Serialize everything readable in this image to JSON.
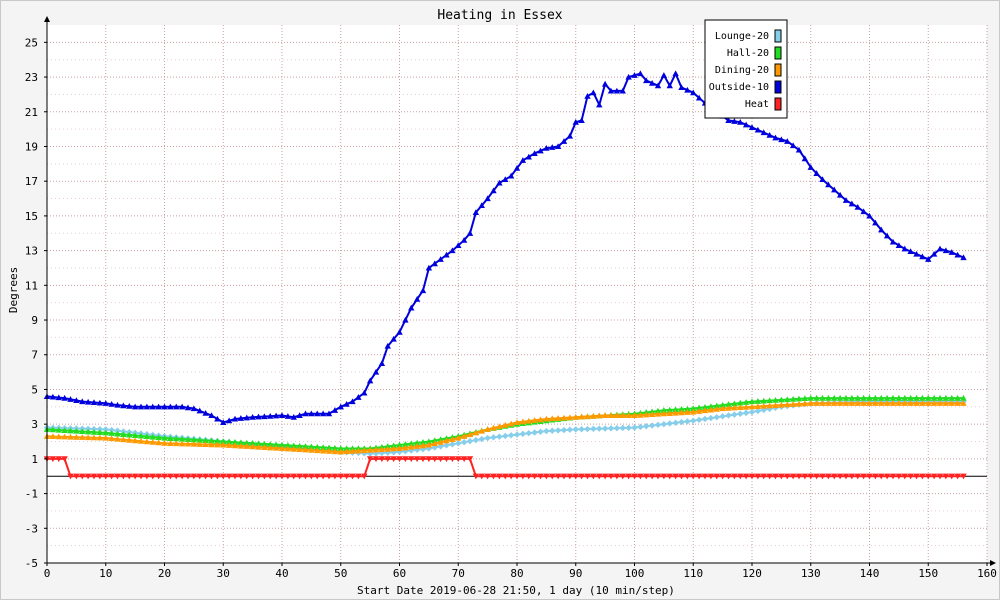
{
  "chart_data": {
    "type": "line",
    "title": "Heating in Essex",
    "xlabel": "Start Date 2019-06-28 21:50, 1 day (10 min/step)",
    "ylabel": "Degrees",
    "xlim": [
      0,
      160
    ],
    "ylim": [
      -5,
      26
    ],
    "xticks": [
      0,
      10,
      20,
      30,
      40,
      50,
      60,
      70,
      80,
      90,
      100,
      110,
      120,
      130,
      140,
      150,
      160
    ],
    "yticks": [
      -5,
      -3,
      -1,
      1,
      3,
      5,
      7,
      9,
      11,
      13,
      15,
      17,
      19,
      21,
      23,
      25
    ],
    "grid": true,
    "legend_position": "top-right",
    "series": [
      {
        "name": "Lounge-20",
        "color": "#87ceeb",
        "marker": "diamond",
        "points": [
          [
            0,
            2.8
          ],
          [
            10,
            2.7
          ],
          [
            20,
            2.3
          ],
          [
            30,
            2.0
          ],
          [
            40,
            1.7
          ],
          [
            50,
            1.4
          ],
          [
            55,
            1.3
          ],
          [
            60,
            1.4
          ],
          [
            65,
            1.6
          ],
          [
            70,
            1.9
          ],
          [
            75,
            2.2
          ],
          [
            80,
            2.4
          ],
          [
            85,
            2.6
          ],
          [
            90,
            2.7
          ],
          [
            100,
            2.8
          ],
          [
            110,
            3.2
          ],
          [
            120,
            3.7
          ],
          [
            125,
            4.0
          ],
          [
            130,
            4.2
          ],
          [
            140,
            4.3
          ],
          [
            150,
            4.3
          ],
          [
            156,
            4.3
          ]
        ]
      },
      {
        "name": "Hall-20",
        "color": "#22dd22",
        "marker": "triangle-up",
        "points": [
          [
            0,
            2.7
          ],
          [
            10,
            2.5
          ],
          [
            20,
            2.2
          ],
          [
            30,
            2.0
          ],
          [
            40,
            1.8
          ],
          [
            50,
            1.6
          ],
          [
            55,
            1.6
          ],
          [
            60,
            1.8
          ],
          [
            65,
            2.0
          ],
          [
            70,
            2.3
          ],
          [
            75,
            2.7
          ],
          [
            80,
            3.0
          ],
          [
            85,
            3.2
          ],
          [
            90,
            3.4
          ],
          [
            95,
            3.5
          ],
          [
            100,
            3.6
          ],
          [
            105,
            3.8
          ],
          [
            110,
            3.9
          ],
          [
            115,
            4.1
          ],
          [
            120,
            4.3
          ],
          [
            125,
            4.4
          ],
          [
            130,
            4.5
          ],
          [
            140,
            4.5
          ],
          [
            150,
            4.5
          ],
          [
            156,
            4.5
          ]
        ]
      },
      {
        "name": "Dining-20",
        "color": "#ff9900",
        "marker": "triangle-up",
        "points": [
          [
            0,
            2.3
          ],
          [
            10,
            2.2
          ],
          [
            20,
            1.9
          ],
          [
            30,
            1.8
          ],
          [
            40,
            1.6
          ],
          [
            50,
            1.4
          ],
          [
            55,
            1.5
          ],
          [
            60,
            1.6
          ],
          [
            65,
            1.8
          ],
          [
            70,
            2.2
          ],
          [
            75,
            2.7
          ],
          [
            80,
            3.1
          ],
          [
            85,
            3.3
          ],
          [
            90,
            3.4
          ],
          [
            95,
            3.5
          ],
          [
            100,
            3.5
          ],
          [
            105,
            3.6
          ],
          [
            110,
            3.7
          ],
          [
            115,
            3.9
          ],
          [
            120,
            4.0
          ],
          [
            125,
            4.1
          ],
          [
            130,
            4.2
          ],
          [
            140,
            4.2
          ],
          [
            150,
            4.2
          ],
          [
            156,
            4.2
          ]
        ]
      },
      {
        "name": "Outside-10",
        "color": "#0000dd",
        "marker": "triangle-up",
        "points": [
          [
            0,
            4.6
          ],
          [
            3,
            4.5
          ],
          [
            6,
            4.3
          ],
          [
            10,
            4.2
          ],
          [
            12,
            4.1
          ],
          [
            15,
            4.0
          ],
          [
            20,
            4.0
          ],
          [
            23,
            4.0
          ],
          [
            25,
            3.9
          ],
          [
            28,
            3.5
          ],
          [
            30,
            3.1
          ],
          [
            32,
            3.3
          ],
          [
            35,
            3.4
          ],
          [
            40,
            3.5
          ],
          [
            42,
            3.4
          ],
          [
            44,
            3.6
          ],
          [
            46,
            3.6
          ],
          [
            48,
            3.6
          ],
          [
            50,
            4.0
          ],
          [
            52,
            4.3
          ],
          [
            54,
            4.8
          ],
          [
            55,
            5.5
          ],
          [
            57,
            6.5
          ],
          [
            58,
            7.5
          ],
          [
            60,
            8.3
          ],
          [
            62,
            9.7
          ],
          [
            64,
            10.7
          ],
          [
            65,
            12.0
          ],
          [
            67,
            12.5
          ],
          [
            69,
            13.0
          ],
          [
            71,
            13.6
          ],
          [
            72,
            14.0
          ],
          [
            73,
            15.2
          ],
          [
            75,
            16.0
          ],
          [
            77,
            16.9
          ],
          [
            79,
            17.3
          ],
          [
            81,
            18.2
          ],
          [
            83,
            18.6
          ],
          [
            85,
            18.9
          ],
          [
            87,
            19.0
          ],
          [
            89,
            19.6
          ],
          [
            90,
            20.4
          ],
          [
            91,
            20.5
          ],
          [
            92,
            21.9
          ],
          [
            93,
            22.1
          ],
          [
            94,
            21.4
          ],
          [
            95,
            22.6
          ],
          [
            96,
            22.2
          ],
          [
            98,
            22.2
          ],
          [
            99,
            23.0
          ],
          [
            101,
            23.2
          ],
          [
            102,
            22.8
          ],
          [
            104,
            22.5
          ],
          [
            105,
            23.1
          ],
          [
            106,
            22.5
          ],
          [
            107,
            23.2
          ],
          [
            108,
            22.4
          ],
          [
            110,
            22.1
          ],
          [
            112,
            21.5
          ],
          [
            114,
            21.0
          ],
          [
            116,
            20.5
          ],
          [
            118,
            20.4
          ],
          [
            120,
            20.1
          ],
          [
            122,
            19.8
          ],
          [
            124,
            19.5
          ],
          [
            126,
            19.3
          ],
          [
            128,
            18.8
          ],
          [
            130,
            17.8
          ],
          [
            132,
            17.1
          ],
          [
            134,
            16.5
          ],
          [
            136,
            15.9
          ],
          [
            138,
            15.5
          ],
          [
            140,
            15.0
          ],
          [
            142,
            14.2
          ],
          [
            144,
            13.5
          ],
          [
            146,
            13.1
          ],
          [
            148,
            12.8
          ],
          [
            150,
            12.5
          ],
          [
            152,
            13.1
          ],
          [
            154,
            12.9
          ],
          [
            156,
            12.6
          ]
        ]
      },
      {
        "name": "Heat",
        "color": "#ff2222",
        "marker": "triangle-down",
        "points": [
          [
            0,
            1
          ],
          [
            3,
            1
          ],
          [
            4,
            0
          ],
          [
            54,
            0
          ],
          [
            55,
            1
          ],
          [
            72,
            1
          ],
          [
            73,
            0
          ],
          [
            156,
            0
          ]
        ]
      }
    ]
  }
}
